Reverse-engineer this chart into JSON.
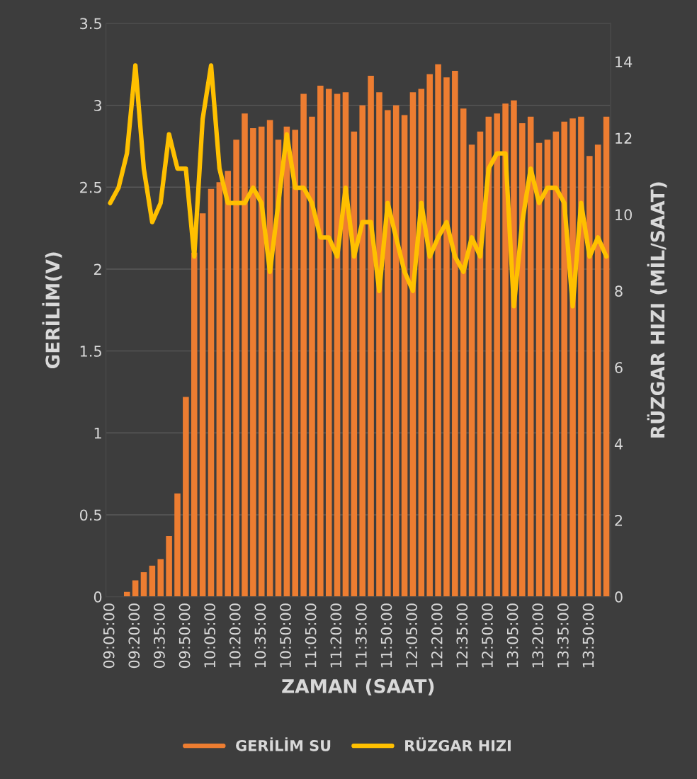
{
  "chart_data": {
    "type": "bar",
    "categories": [
      "09:05:00",
      null,
      null,
      "09:20:00",
      null,
      null,
      "09:35:00",
      null,
      null,
      "09:50:00",
      null,
      null,
      "10:05:00",
      null,
      null,
      "10:20:00",
      null,
      null,
      "10:35:00",
      null,
      null,
      "10:50:00",
      null,
      null,
      "11:05:00",
      null,
      null,
      "11:20:00",
      null,
      null,
      "11:35:00",
      null,
      null,
      "11:50:00",
      null,
      null,
      "12:05:00",
      null,
      null,
      "12:20:00",
      null,
      null,
      "12:35:00",
      null,
      null,
      "12:50:00",
      null,
      null,
      "13:05:00",
      null,
      null,
      "13:20:00",
      null,
      null,
      "13:35:00",
      null,
      null,
      "13:50:00",
      null,
      null
    ],
    "series": [
      {
        "name": "GERİLİM SU",
        "color": "#ed7d31",
        "values": [
          0,
          0,
          0.03,
          0.1,
          0.15,
          0.19,
          0.23,
          0.37,
          0.63,
          1.22,
          2.1,
          2.34,
          2.49,
          2.53,
          2.6,
          2.79,
          2.95,
          2.86,
          2.87,
          2.91,
          2.79,
          2.87,
          2.85,
          3.07,
          2.93,
          3.12,
          3.1,
          3.07,
          3.08,
          2.84,
          3.0,
          3.18,
          3.08,
          2.97,
          3.0,
          2.94,
          3.08,
          3.1,
          3.19,
          3.25,
          3.17,
          3.21,
          2.98,
          2.76,
          2.84,
          2.93,
          2.95,
          3.01,
          3.03,
          2.89,
          2.93,
          2.77,
          2.79,
          2.84,
          2.9,
          2.92,
          2.93,
          2.69,
          2.76,
          2.93
        ]
      },
      {
        "name": "RÜZGAR HIZI",
        "type": "line",
        "axis": "y2",
        "color": "#ffc000",
        "values": [
          10.3,
          10.7,
          11.6,
          13.9,
          11.2,
          9.8,
          10.3,
          12.1,
          11.2,
          11.2,
          8.9,
          12.5,
          13.9,
          11.2,
          10.3,
          10.3,
          10.3,
          10.7,
          10.3,
          8.5,
          10.3,
          12.1,
          10.7,
          10.7,
          10.3,
          9.4,
          9.4,
          8.9,
          10.7,
          8.9,
          9.8,
          9.8,
          8.0,
          10.3,
          9.4,
          8.5,
          8.0,
          10.3,
          8.9,
          9.4,
          9.8,
          8.9,
          8.5,
          9.4,
          8.9,
          11.2,
          11.6,
          11.6,
          7.6,
          9.8,
          11.2,
          10.3,
          10.7,
          10.7,
          10.3,
          7.6,
          10.3,
          8.9,
          9.4,
          8.9
        ]
      }
    ],
    "xlabel": "ZAMAN (SAAT)",
    "ylabel": "GERİLİM(V)",
    "y2label": "RÜZGAR HIZI (MİL/SAAT)",
    "ylim": [
      0,
      3.5
    ],
    "yticks": [
      0,
      0.5,
      1,
      1.5,
      2,
      2.5,
      3,
      3.5
    ],
    "y2lim": [
      0,
      15
    ],
    "y2ticks": [
      0,
      2,
      4,
      6,
      8,
      10,
      12,
      14
    ],
    "grid": "y",
    "legend": "bottom"
  }
}
